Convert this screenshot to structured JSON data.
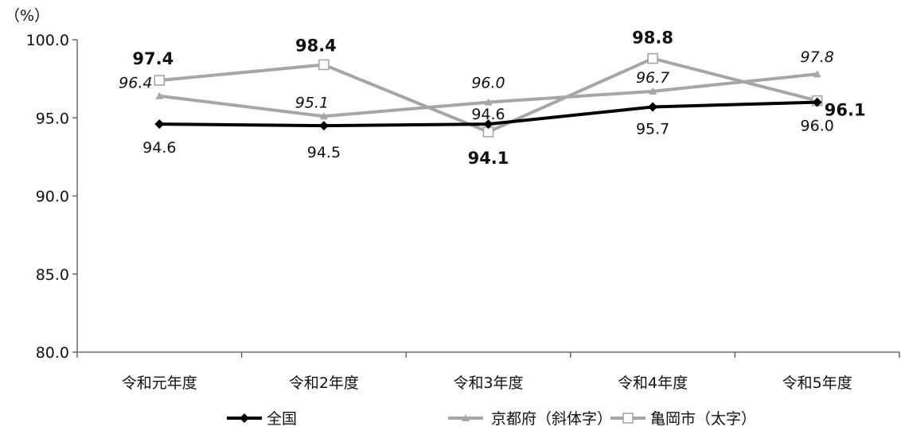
{
  "chart_data": {
    "type": "line",
    "unit_label": "（%）",
    "categories": [
      "令和元年度",
      "令和2年度",
      "令和3年度",
      "令和4年度",
      "令和5年度"
    ],
    "ylim": [
      80,
      100
    ],
    "yticks": [
      "80.0",
      "85.0",
      "90.0",
      "95.0",
      "100.0"
    ],
    "grid": false,
    "legend_position": "bottom",
    "series": [
      {
        "name": "全国",
        "values": [
          94.6,
          94.5,
          94.6,
          95.7,
          96.0
        ],
        "labels": [
          "94.6",
          "94.5",
          "94.6",
          "95.7",
          "96.0"
        ],
        "color": "#000000",
        "marker": "diamond",
        "label_style": "normal"
      },
      {
        "name": "京都府（斜体字）",
        "values": [
          96.4,
          95.1,
          96.0,
          96.7,
          97.8
        ],
        "labels": [
          "96.4",
          "95.1",
          "96.0",
          "96.7",
          "97.8"
        ],
        "color": "#a6a6a6",
        "marker": "triangle",
        "label_style": "italic"
      },
      {
        "name": "亀岡市（太字）",
        "values": [
          97.4,
          98.4,
          94.1,
          98.8,
          96.1
        ],
        "labels": [
          "97.4",
          "98.4",
          "94.1",
          "98.8",
          "96.1"
        ],
        "color": "#a6a6a6",
        "marker": "square",
        "label_style": "bold"
      }
    ]
  }
}
